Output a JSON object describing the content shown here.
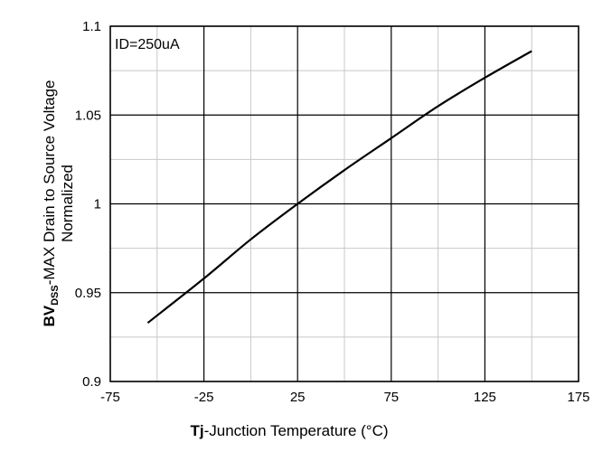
{
  "chart_data": {
    "type": "line",
    "title": "",
    "xlabel_prefix": "Tj",
    "xlabel_rest": "-Junction Temperature (°C)",
    "ylabel_line1_prefix": "BV",
    "ylabel_line1_subscript": "DSS",
    "ylabel_line1_rest": "-MAX Drain to Source Voltage",
    "ylabel_line2": "Normalized",
    "xlim": [
      -75,
      175
    ],
    "ylim": [
      0.9,
      1.1
    ],
    "x_major_ticks": [
      -75,
      -25,
      25,
      75,
      125,
      175
    ],
    "x_minor_ticks": [
      -50,
      0,
      50,
      100,
      150
    ],
    "y_major_ticks": [
      0.9,
      0.95,
      1,
      1.05,
      1.1
    ],
    "y_minor_ticks": [
      0.925,
      0.975,
      1.025,
      1.075
    ],
    "x_tick_labels": [
      "-75",
      "-25",
      "25",
      "75",
      "125",
      "175"
    ],
    "y_tick_labels": [
      "0.9",
      "0.95",
      "1",
      "1.05",
      "1.1"
    ],
    "grid": true,
    "annotation": "ID=250uA",
    "line_color": "#000000",
    "series": [
      {
        "x": [
          -55,
          -25,
          0,
          25,
          50,
          75,
          100,
          125,
          150
        ],
        "y": [
          0.933,
          0.958,
          0.98,
          1.0,
          1.019,
          1.037,
          1.055,
          1.071,
          1.086
        ]
      }
    ]
  }
}
